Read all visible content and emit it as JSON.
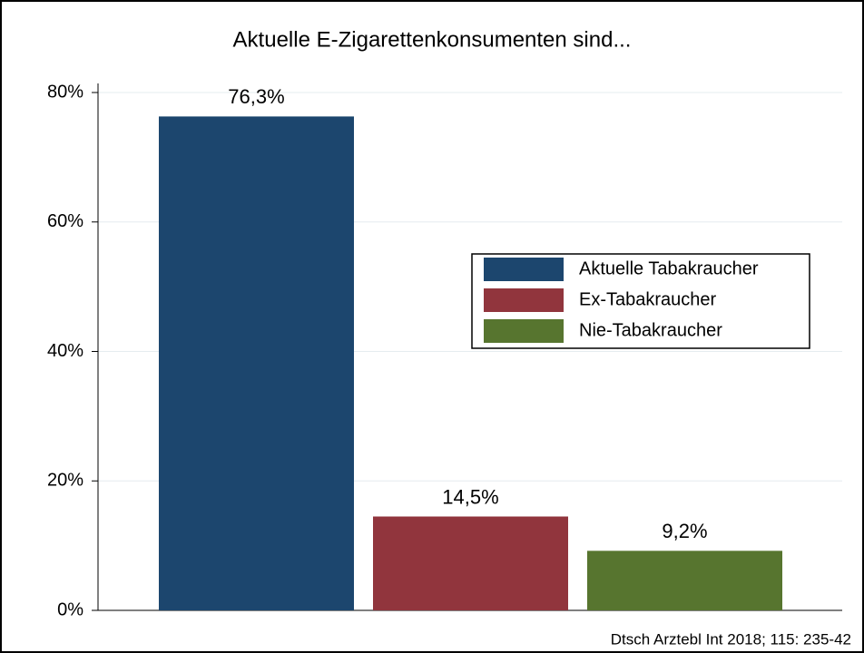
{
  "chart_data": {
    "type": "bar",
    "title": "Aktuelle E-Zigarettenkonsumenten sind...",
    "series": [
      {
        "name": "Aktuelle Tabakraucher",
        "color": "#1c466e",
        "values": [
          76.3
        ],
        "value_labels": [
          "76,3%"
        ]
      },
      {
        "name": "Ex-Tabakraucher",
        "color": "#91353d",
        "values": [
          14.5
        ],
        "value_labels": [
          "14,5%"
        ]
      },
      {
        "name": "Nie-Tabakraucher",
        "color": "#57752f",
        "values": [
          9.2
        ],
        "value_labels": [
          "9,2%"
        ]
      }
    ],
    "ylim": [
      0,
      80
    ],
    "yticks": [
      {
        "value": 0,
        "label": "0%"
      },
      {
        "value": 20,
        "label": "20%"
      },
      {
        "value": 40,
        "label": "40%"
      },
      {
        "value": 60,
        "label": "60%"
      },
      {
        "value": 80,
        "label": "80%"
      }
    ],
    "grid": true,
    "legend": "right",
    "source": "Dtsch Arztebl Int 2018; 115: 235-42"
  }
}
